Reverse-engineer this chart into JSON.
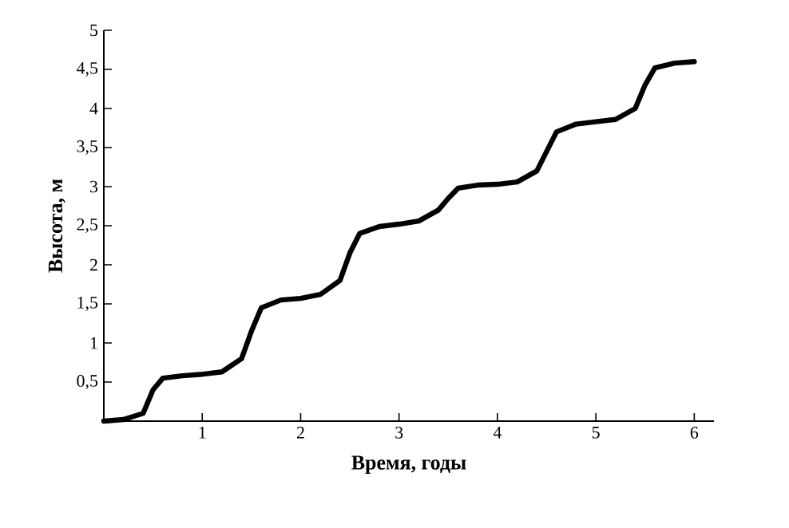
{
  "chart_data": {
    "type": "line",
    "xlabel": "Время, годы",
    "ylabel": "Высота, м",
    "xlim": [
      0,
      6.2
    ],
    "ylim": [
      0,
      5
    ],
    "xticks": [
      1,
      2,
      3,
      4,
      5,
      6
    ],
    "yticks": [
      {
        "value": 0.5,
        "label": "0,5"
      },
      {
        "value": 1,
        "label": "1"
      },
      {
        "value": 1.5,
        "label": "1,5"
      },
      {
        "value": 2,
        "label": "2"
      },
      {
        "value": 2.5,
        "label": "2,5"
      },
      {
        "value": 3,
        "label": "3"
      },
      {
        "value": 3.5,
        "label": "3,5"
      },
      {
        "value": 4,
        "label": "4"
      },
      {
        "value": 4.5,
        "label": "4,5"
      },
      {
        "value": 5,
        "label": "5"
      }
    ],
    "marker": "none",
    "line_style": "solid",
    "series": [
      {
        "color": "#000000",
        "x": [
          0,
          0.2,
          0.4,
          0.5,
          0.6,
          0.8,
          1.0,
          1.2,
          1.4,
          1.5,
          1.6,
          1.8,
          2.0,
          2.2,
          2.4,
          2.5,
          2.6,
          2.8,
          3.0,
          3.2,
          3.4,
          3.5,
          3.6,
          3.8,
          4.0,
          4.2,
          4.4,
          4.5,
          4.6,
          4.8,
          5.0,
          5.2,
          5.4,
          5.5,
          5.6,
          5.8,
          6.0
        ],
        "values": [
          0,
          0.02,
          0.1,
          0.4,
          0.55,
          0.58,
          0.6,
          0.63,
          0.8,
          1.15,
          1.45,
          1.55,
          1.57,
          1.62,
          1.8,
          2.15,
          2.4,
          2.49,
          2.52,
          2.56,
          2.7,
          2.85,
          2.98,
          3.02,
          3.03,
          3.06,
          3.2,
          3.45,
          3.7,
          3.8,
          3.83,
          3.86,
          4.0,
          4.3,
          4.52,
          4.58,
          4.6
        ]
      }
    ]
  }
}
